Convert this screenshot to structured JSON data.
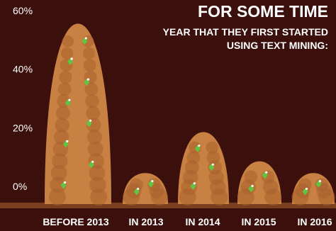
{
  "header": {
    "title": "FOR SOME TIME",
    "subtitle_line1": "YEAR THAT THEY FIRST STARTED",
    "subtitle_line2": "USING TEXT MINING:"
  },
  "colors": {
    "background": "#3a0f0c",
    "pile": "#c98043",
    "pile_dark": "#a8612c",
    "gem": "#5fc542",
    "text": "#ffffff"
  },
  "chart_data": {
    "type": "bar",
    "title": "",
    "xlabel": "",
    "ylabel": "",
    "ylim": [
      0,
      60
    ],
    "yticks": [
      "0%",
      "20%",
      "40%",
      "60%"
    ],
    "categories": [
      "BEFORE 2013",
      "IN 2013",
      "IN 2014",
      "IN 2015",
      "IN 2016"
    ],
    "values": [
      57,
      6,
      20,
      10,
      6
    ],
    "grid": false,
    "legend": "none"
  }
}
